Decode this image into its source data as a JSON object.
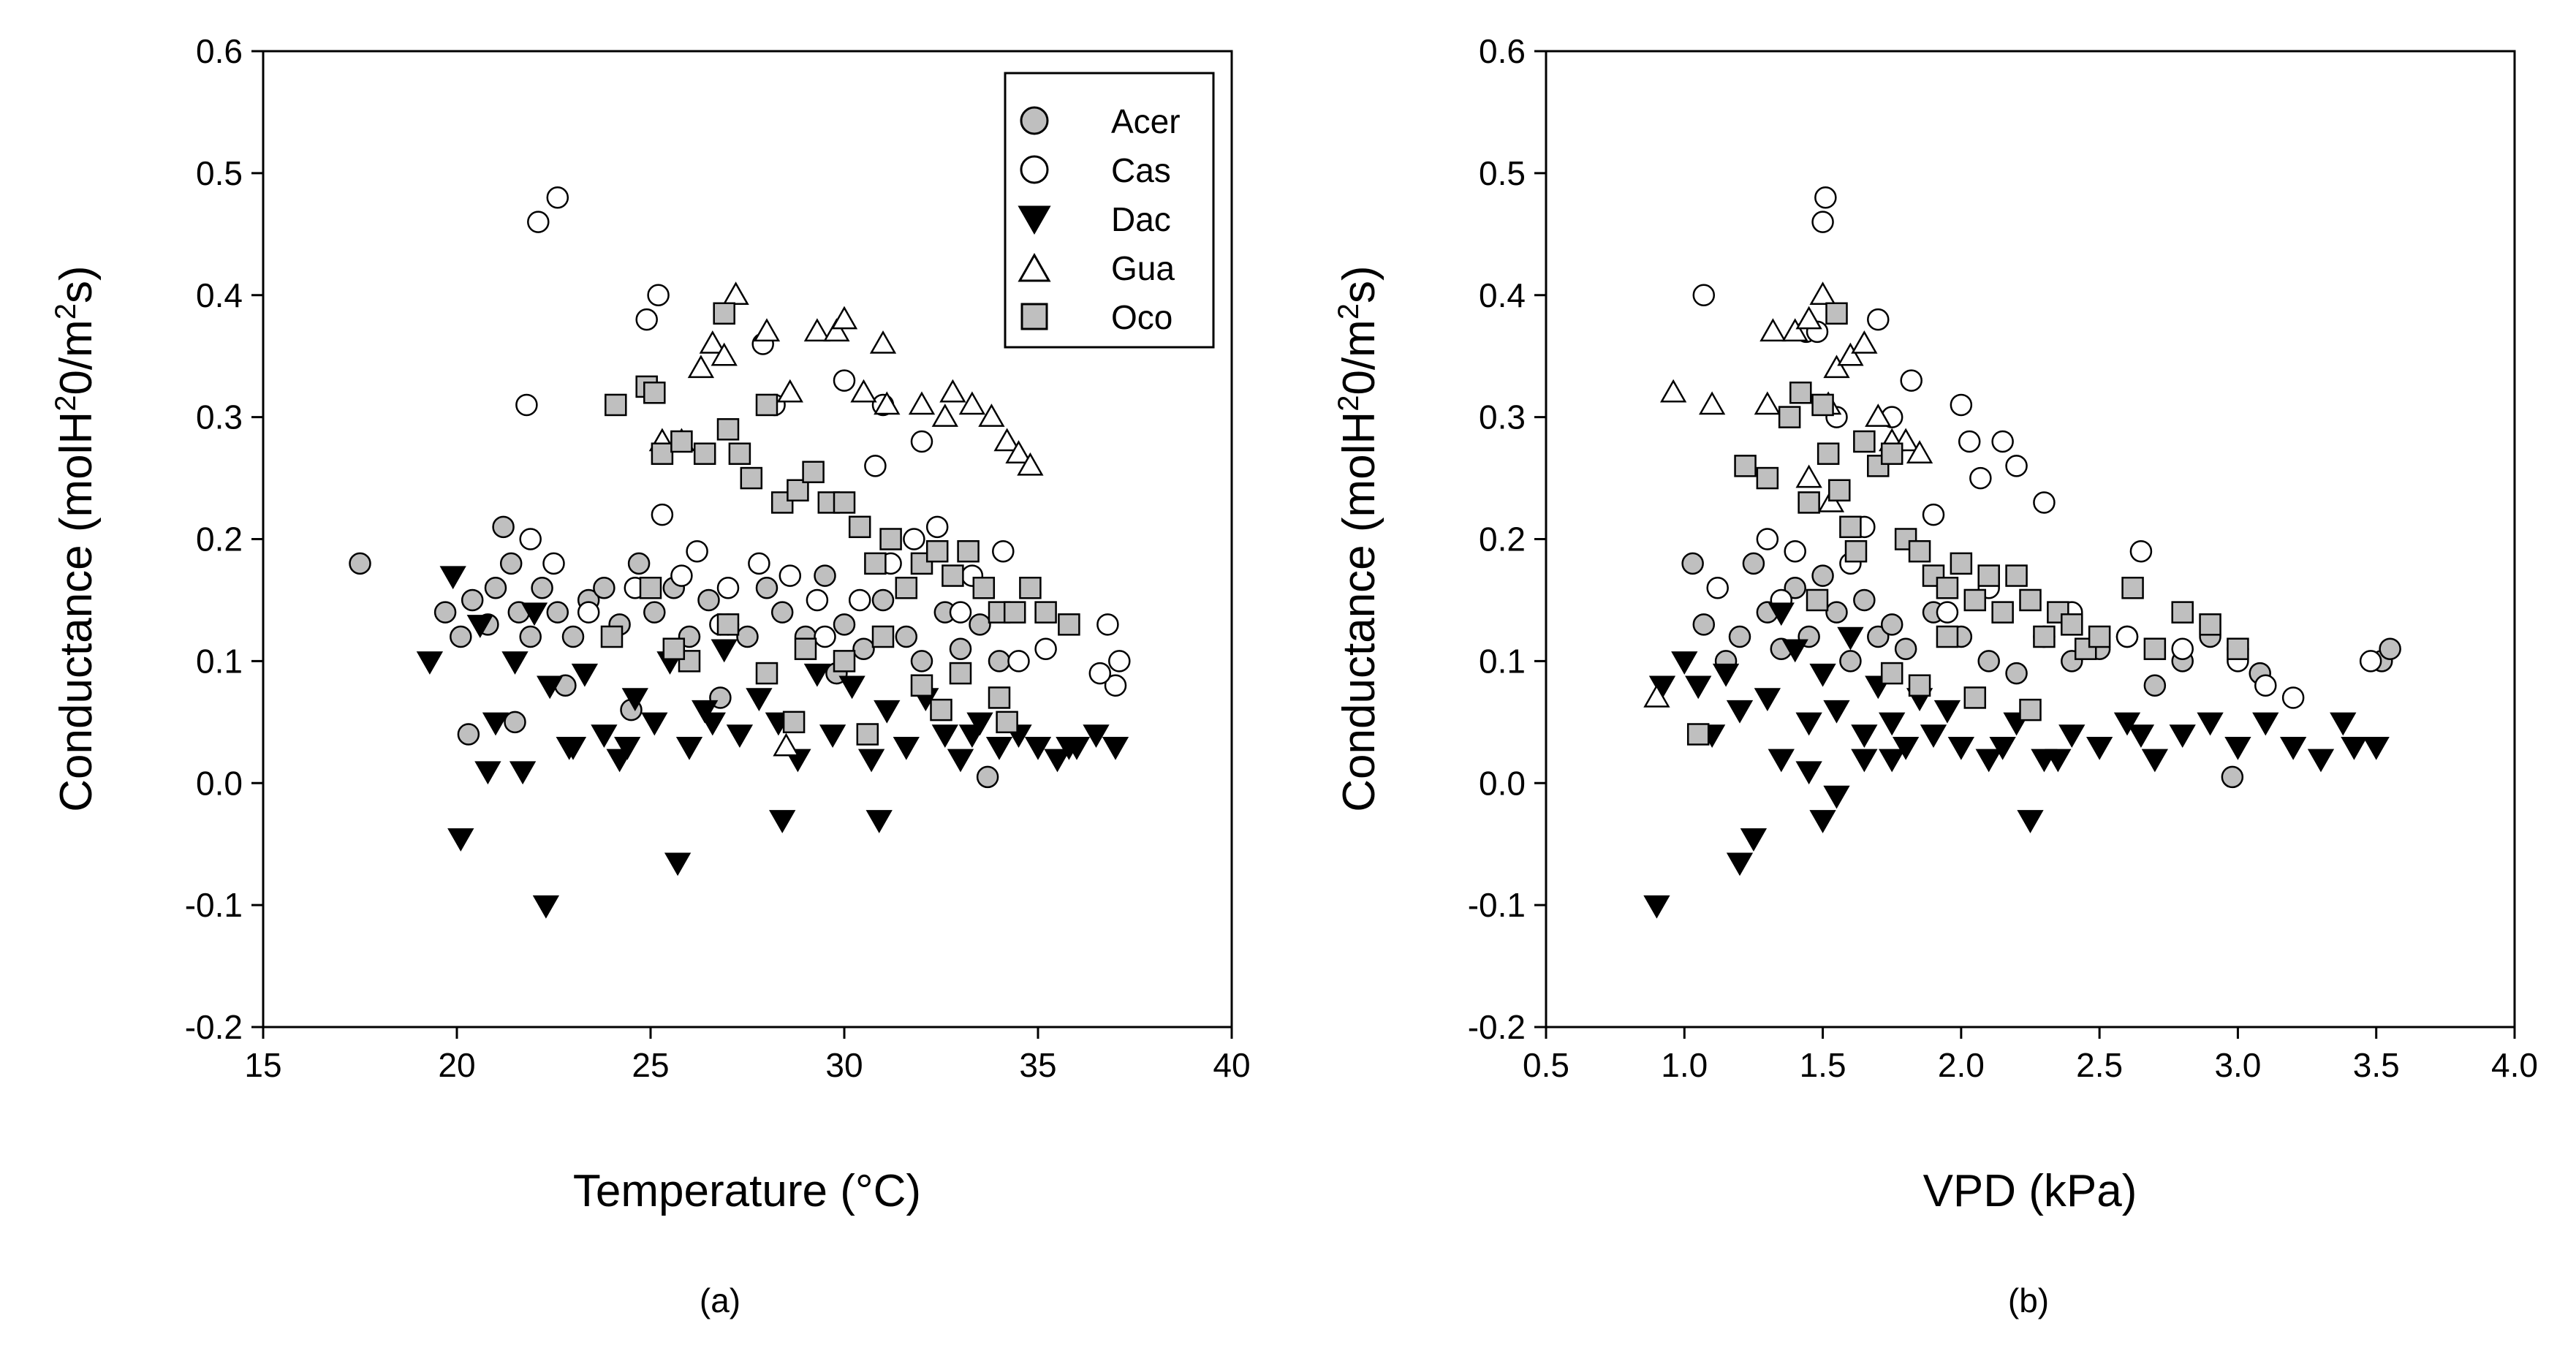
{
  "legend": {
    "entries": [
      {
        "label": "Acer",
        "symbol": "circle",
        "fill": "#bfbfbf"
      },
      {
        "label": "Cas",
        "symbol": "circle",
        "fill": "#ffffff"
      },
      {
        "label": "Dac",
        "symbol": "triangle-down",
        "fill": "#000000"
      },
      {
        "label": "Gua",
        "symbol": "triangle-up",
        "fill": "#ffffff"
      },
      {
        "label": "Oco",
        "symbol": "square",
        "fill": "#bfbfbf"
      }
    ]
  },
  "chart_data": [
    {
      "type": "scatter",
      "panel_label": "(a)",
      "xlabel": "Temperature (°C)",
      "ylabel_main": "Conductance (molH",
      "ylabel_sup1": "2",
      "ylabel_mid": "0/m",
      "ylabel_sup2": "2",
      "ylabel_end": "s)",
      "xlim": [
        15,
        40
      ],
      "ylim": [
        -0.2,
        0.6
      ],
      "xticks": [
        15,
        20,
        25,
        30,
        35,
        40
      ],
      "xtick_labels": [
        "15",
        "20",
        "25",
        "30",
        "35",
        "40"
      ],
      "yticks": [
        -0.2,
        -0.1,
        0.0,
        0.1,
        0.2,
        0.3,
        0.4,
        0.5,
        0.6
      ],
      "ytick_labels": [
        "-0.2",
        "-0.1",
        "0.0",
        "0.1",
        "0.2",
        "0.3",
        "0.4",
        "0.5",
        "0.6"
      ],
      "legend_position": "top-right",
      "series": [
        {
          "name": "Acer",
          "x": [
            17.5,
            19.7,
            20.1,
            20.4,
            20.8,
            21.0,
            21.2,
            21.4,
            21.6,
            21.9,
            22.2,
            22.6,
            23.0,
            23.4,
            23.8,
            24.2,
            24.7,
            25.1,
            25.6,
            26.0,
            26.5,
            27.0,
            27.5,
            28.0,
            28.4,
            29.0,
            29.5,
            30.0,
            30.5,
            31.0,
            31.6,
            32.0,
            32.6,
            33.0,
            33.5,
            34.0,
            20.3,
            21.5,
            22.8,
            24.5,
            26.8,
            29.8,
            33.7
          ],
          "y": [
            0.18,
            0.14,
            0.12,
            0.15,
            0.13,
            0.16,
            0.21,
            0.18,
            0.14,
            0.12,
            0.16,
            0.14,
            0.12,
            0.15,
            0.16,
            0.13,
            0.18,
            0.14,
            0.16,
            0.12,
            0.15,
            0.13,
            0.12,
            0.16,
            0.14,
            0.12,
            0.17,
            0.13,
            0.11,
            0.15,
            0.12,
            0.1,
            0.14,
            0.11,
            0.13,
            0.1,
            0.04,
            0.05,
            0.08,
            0.06,
            0.07,
            0.09,
            0.005
          ]
        },
        {
          "name": "Cas",
          "x": [
            22.1,
            22.6,
            25.2,
            24.9,
            21.8,
            27.9,
            28.2,
            30.0,
            31.0,
            32.0,
            21.9,
            24.6,
            25.3,
            26.2,
            27.8,
            28.6,
            29.3,
            30.4,
            31.2,
            32.4,
            33.3,
            34.1,
            36.8,
            37.1,
            37.0,
            36.6,
            35.2,
            34.5,
            33.0,
            29.5,
            27.0,
            23.4,
            22.5,
            25.8,
            31.8,
            26.8,
            30.8
          ],
          "y": [
            0.46,
            0.48,
            0.4,
            0.38,
            0.31,
            0.36,
            0.31,
            0.33,
            0.31,
            0.28,
            0.2,
            0.16,
            0.22,
            0.19,
            0.18,
            0.17,
            0.15,
            0.15,
            0.18,
            0.21,
            0.17,
            0.19,
            0.13,
            0.1,
            0.08,
            0.09,
            0.11,
            0.1,
            0.14,
            0.12,
            0.16,
            0.14,
            0.18,
            0.17,
            0.2,
            0.13,
            0.26
          ]
        },
        {
          "name": "Dac",
          "x": [
            20.1,
            22.3,
            25.7,
            19.3,
            19.9,
            20.6,
            21.0,
            21.5,
            22.0,
            22.4,
            22.9,
            23.3,
            23.8,
            24.2,
            24.6,
            25.1,
            25.5,
            26.0,
            26.4,
            26.9,
            27.3,
            27.8,
            28.3,
            28.8,
            29.3,
            29.7,
            30.2,
            30.7,
            31.1,
            31.6,
            32.1,
            32.6,
            33.0,
            33.5,
            34.0,
            34.5,
            35.0,
            35.5,
            36.0,
            36.5,
            37.0,
            20.8,
            21.7,
            23.0,
            24.4,
            26.6,
            28.4,
            30.9,
            33.3,
            35.8
          ],
          "y": [
            -0.045,
            -0.1,
            -0.065,
            0.1,
            0.17,
            0.13,
            0.05,
            0.1,
            0.14,
            0.08,
            0.03,
            0.09,
            0.04,
            0.02,
            0.07,
            0.05,
            0.1,
            0.03,
            0.06,
            0.11,
            0.04,
            0.07,
            0.05,
            0.02,
            0.09,
            0.04,
            0.08,
            0.02,
            0.06,
            0.03,
            0.07,
            0.04,
            0.02,
            0.05,
            0.03,
            0.04,
            0.03,
            0.02,
            0.03,
            0.04,
            0.03,
            0.01,
            0.01,
            0.03,
            0.03,
            0.05,
            -0.03,
            -0.03,
            0.04,
            0.03
          ]
        },
        {
          "name": "Gua",
          "x": [
            27.2,
            26.6,
            26.9,
            26.3,
            28.0,
            28.6,
            29.3,
            29.8,
            30.0,
            30.5,
            31.0,
            31.1,
            32.0,
            32.6,
            32.8,
            33.3,
            33.8,
            34.2,
            34.5,
            34.8,
            25.8,
            25.3,
            28.5
          ],
          "y": [
            0.4,
            0.36,
            0.35,
            0.34,
            0.37,
            0.32,
            0.37,
            0.37,
            0.38,
            0.32,
            0.36,
            0.31,
            0.31,
            0.3,
            0.32,
            0.31,
            0.3,
            0.28,
            0.27,
            0.26,
            0.28,
            0.28,
            0.03
          ]
        },
        {
          "name": "Oco",
          "x": [
            26.9,
            24.1,
            24.9,
            25.1,
            25.3,
            25.8,
            26.4,
            27.0,
            27.3,
            27.6,
            28.0,
            28.4,
            28.8,
            29.2,
            29.6,
            30.0,
            30.4,
            30.8,
            31.2,
            31.6,
            32.0,
            32.4,
            32.8,
            33.2,
            33.6,
            34.0,
            34.4,
            34.8,
            35.2,
            35.8,
            24.0,
            25.0,
            26.0,
            27.0,
            28.0,
            29.0,
            30.0,
            31.0,
            32.0,
            33.0,
            34.0,
            25.6,
            28.7,
            30.6,
            32.5,
            34.2
          ],
          "y": [
            0.385,
            0.31,
            0.325,
            0.32,
            0.27,
            0.28,
            0.27,
            0.29,
            0.27,
            0.25,
            0.31,
            0.23,
            0.24,
            0.255,
            0.23,
            0.23,
            0.21,
            0.18,
            0.2,
            0.16,
            0.18,
            0.19,
            0.17,
            0.19,
            0.16,
            0.14,
            0.14,
            0.16,
            0.14,
            0.13,
            0.12,
            0.16,
            0.1,
            0.13,
            0.09,
            0.11,
            0.1,
            0.12,
            0.08,
            0.09,
            0.07,
            0.11,
            0.05,
            0.04,
            0.06,
            0.05
          ]
        }
      ]
    },
    {
      "type": "scatter",
      "panel_label": "(b)",
      "xlabel": "VPD (kPa)",
      "ylabel_main": "Conductance (molH",
      "ylabel_sup1": "2",
      "ylabel_mid": "0/m",
      "ylabel_sup2": "2",
      "ylabel_end": "s)",
      "xlim": [
        0.5,
        4.0
      ],
      "ylim": [
        -0.2,
        0.6
      ],
      "xticks": [
        0.5,
        1.0,
        1.5,
        2.0,
        2.5,
        3.0,
        3.5,
        4.0
      ],
      "xtick_labels": [
        "0.5",
        "1.0",
        "1.5",
        "2.0",
        "2.5",
        "3.0",
        "3.5",
        "4.0"
      ],
      "yticks": [
        -0.2,
        -0.1,
        0.0,
        0.1,
        0.2,
        0.3,
        0.4,
        0.5,
        0.6
      ],
      "ytick_labels": [
        "-0.2",
        "-0.1",
        "0.0",
        "0.1",
        "0.2",
        "0.3",
        "0.4",
        "0.5",
        "0.6"
      ],
      "series": [
        {
          "name": "Acer",
          "x": [
            1.03,
            1.07,
            1.15,
            1.2,
            1.25,
            1.3,
            1.35,
            1.4,
            1.45,
            1.5,
            1.55,
            1.6,
            1.65,
            1.7,
            1.75,
            1.8,
            1.9,
            2.0,
            2.1,
            2.2,
            2.3,
            2.4,
            2.5,
            2.6,
            2.7,
            2.8,
            2.9,
            3.0,
            3.08,
            3.52,
            3.55,
            2.98
          ],
          "y": [
            0.18,
            0.13,
            0.1,
            0.12,
            0.18,
            0.14,
            0.11,
            0.16,
            0.12,
            0.17,
            0.14,
            0.1,
            0.15,
            0.12,
            0.13,
            0.11,
            0.14,
            0.12,
            0.1,
            0.09,
            0.12,
            0.1,
            0.11,
            0.12,
            0.08,
            0.1,
            0.12,
            0.11,
            0.09,
            0.1,
            0.11,
            0.005
          ]
        },
        {
          "name": "Cas",
          "x": [
            1.07,
            1.5,
            1.51,
            1.44,
            1.48,
            1.55,
            1.7,
            1.82,
            2.0,
            2.03,
            2.07,
            2.15,
            2.2,
            2.3,
            2.65,
            1.12,
            1.3,
            1.4,
            1.6,
            1.9,
            2.1,
            2.4,
            2.6,
            2.8,
            3.0,
            3.1,
            3.2,
            3.48,
            1.75,
            1.35,
            1.65,
            1.95
          ],
          "y": [
            0.4,
            0.46,
            0.48,
            0.37,
            0.37,
            0.3,
            0.38,
            0.33,
            0.31,
            0.28,
            0.25,
            0.28,
            0.26,
            0.23,
            0.19,
            0.16,
            0.2,
            0.19,
            0.18,
            0.22,
            0.16,
            0.14,
            0.12,
            0.11,
            0.1,
            0.08,
            0.07,
            0.1,
            0.3,
            0.15,
            0.21,
            0.14
          ]
        },
        {
          "name": "Dac",
          "x": [
            0.9,
            1.2,
            1.25,
            1.5,
            2.25,
            0.92,
            1.0,
            1.05,
            1.1,
            1.15,
            1.2,
            1.3,
            1.35,
            1.4,
            1.45,
            1.5,
            1.55,
            1.6,
            1.65,
            1.7,
            1.75,
            1.8,
            1.85,
            1.9,
            1.95,
            2.0,
            2.1,
            2.2,
            2.3,
            2.4,
            2.5,
            2.6,
            2.7,
            2.8,
            2.9,
            3.0,
            3.1,
            3.2,
            3.3,
            3.38,
            3.42,
            3.5,
            1.35,
            1.45,
            1.55,
            1.65,
            1.75,
            2.15,
            2.35,
            2.65
          ],
          "y": [
            -0.1,
            -0.065,
            -0.045,
            -0.03,
            -0.03,
            0.08,
            0.1,
            0.08,
            0.04,
            0.09,
            0.06,
            0.07,
            0.14,
            0.11,
            0.05,
            0.09,
            0.06,
            0.12,
            0.04,
            0.08,
            0.05,
            0.03,
            0.07,
            0.04,
            0.06,
            0.03,
            0.02,
            0.05,
            0.02,
            0.04,
            0.03,
            0.05,
            0.02,
            0.04,
            0.05,
            0.03,
            0.05,
            0.03,
            0.02,
            0.05,
            0.03,
            0.03,
            0.02,
            0.01,
            -0.01,
            0.02,
            0.02,
            0.03,
            0.02,
            0.04
          ]
        },
        {
          "name": "Gua",
          "x": [
            0.9,
            0.96,
            1.1,
            1.3,
            1.32,
            1.4,
            1.45,
            1.5,
            1.52,
            1.55,
            1.6,
            1.65,
            1.7,
            1.75,
            1.8,
            1.85,
            1.45,
            1.53
          ],
          "y": [
            0.07,
            0.32,
            0.31,
            0.31,
            0.37,
            0.37,
            0.38,
            0.4,
            0.31,
            0.34,
            0.35,
            0.36,
            0.3,
            0.28,
            0.28,
            0.27,
            0.25,
            0.23
          ]
        },
        {
          "name": "Oco",
          "x": [
            1.55,
            1.22,
            1.3,
            1.38,
            1.42,
            1.45,
            1.5,
            1.52,
            1.56,
            1.6,
            1.65,
            1.7,
            1.75,
            1.8,
            1.85,
            1.9,
            1.95,
            2.0,
            2.05,
            2.1,
            2.15,
            2.2,
            2.25,
            2.3,
            2.35,
            2.4,
            2.45,
            2.5,
            2.62,
            2.7,
            2.8,
            2.9,
            3.0,
            1.75,
            1.85,
            2.05,
            2.25,
            1.05,
            1.48,
            1.62,
            1.95
          ],
          "y": [
            0.385,
            0.26,
            0.25,
            0.3,
            0.32,
            0.23,
            0.31,
            0.27,
            0.24,
            0.21,
            0.28,
            0.26,
            0.27,
            0.2,
            0.19,
            0.17,
            0.16,
            0.18,
            0.15,
            0.17,
            0.14,
            0.17,
            0.15,
            0.12,
            0.14,
            0.13,
            0.11,
            0.12,
            0.16,
            0.11,
            0.14,
            0.13,
            0.11,
            0.09,
            0.08,
            0.07,
            0.06,
            0.04,
            0.15,
            0.19,
            0.12
          ]
        }
      ]
    }
  ]
}
